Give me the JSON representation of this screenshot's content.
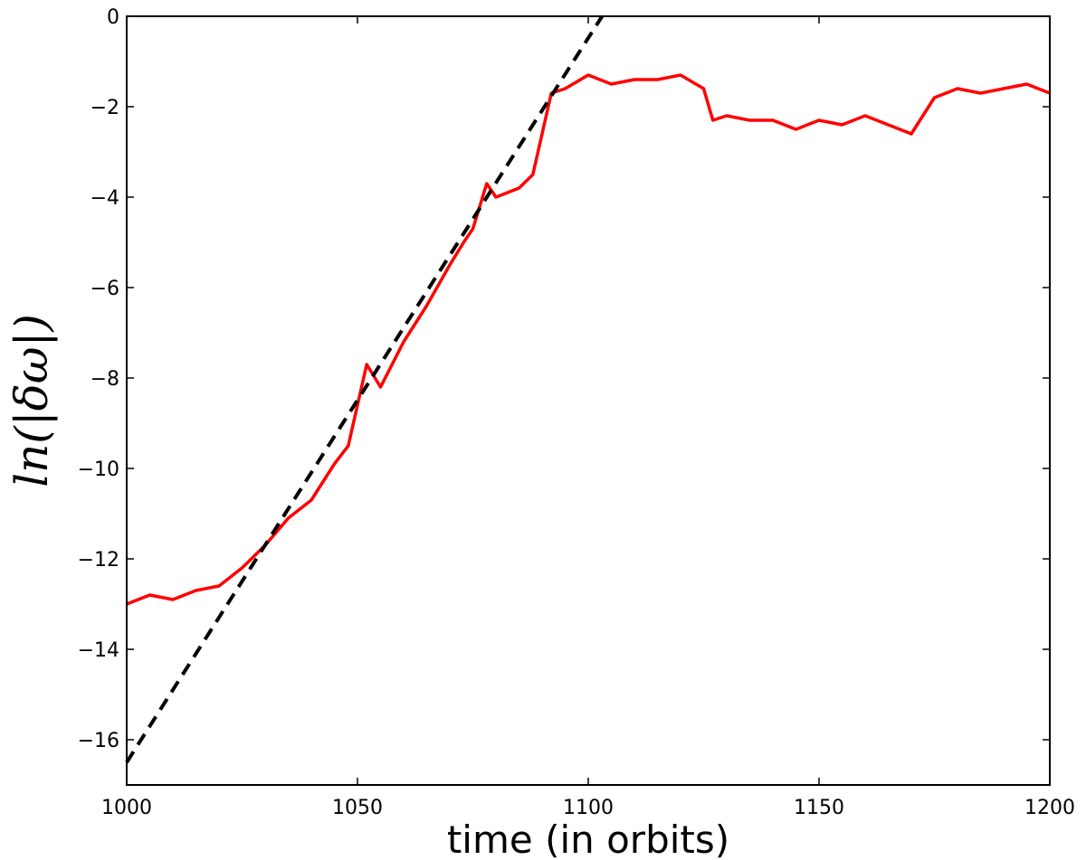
{
  "chart_data": {
    "type": "line",
    "title": "",
    "xlabel": "time (in orbits)",
    "ylabel": "ln(|δω|)",
    "xlim": [
      1000,
      1200
    ],
    "ylim": [
      -17,
      0
    ],
    "x_ticks": [
      1000,
      1050,
      1100,
      1150,
      1200
    ],
    "y_ticks": [
      0,
      -2,
      -4,
      -6,
      -8,
      -10,
      -12,
      -14,
      -16
    ],
    "x_tick_labels": [
      "1000",
      "1050",
      "1100",
      "1150",
      "1200"
    ],
    "y_tick_labels": [
      "0",
      "−2",
      "−4",
      "−6",
      "−8",
      "−10",
      "−12",
      "−14",
      "−16"
    ],
    "grid": false,
    "colors": {
      "data": "#ff0000",
      "fit": "#000000"
    },
    "series": [
      {
        "style": "solid",
        "color": "#ff0000",
        "x": [
          1000,
          1005,
          1010,
          1015,
          1020,
          1025,
          1030,
          1035,
          1040,
          1045,
          1048,
          1050,
          1052,
          1055,
          1060,
          1065,
          1070,
          1073,
          1075,
          1078,
          1080,
          1085,
          1088,
          1090,
          1092,
          1095,
          1100,
          1105,
          1110,
          1115,
          1120,
          1125,
          1127,
          1130,
          1135,
          1140,
          1145,
          1150,
          1155,
          1160,
          1165,
          1170,
          1175,
          1180,
          1185,
          1190,
          1195,
          1200
        ],
        "y": [
          -13.0,
          -12.8,
          -12.9,
          -12.7,
          -12.6,
          -12.2,
          -11.7,
          -11.1,
          -10.7,
          -9.9,
          -9.5,
          -8.6,
          -7.7,
          -8.2,
          -7.2,
          -6.4,
          -5.5,
          -5.0,
          -4.7,
          -3.7,
          -4.0,
          -3.8,
          -3.5,
          -2.6,
          -1.7,
          -1.6,
          -1.3,
          -1.5,
          -1.4,
          -1.4,
          -1.3,
          -1.6,
          -2.3,
          -2.2,
          -2.3,
          -2.3,
          -2.5,
          -2.3,
          -2.4,
          -2.2,
          -2.4,
          -2.6,
          -1.8,
          -1.6,
          -1.7,
          -1.6,
          -1.5,
          -1.7
        ]
      },
      {
        "style": "dashed",
        "color": "#000000",
        "x": [
          1000,
          1103
        ],
        "y": [
          -16.5,
          0
        ]
      }
    ]
  }
}
